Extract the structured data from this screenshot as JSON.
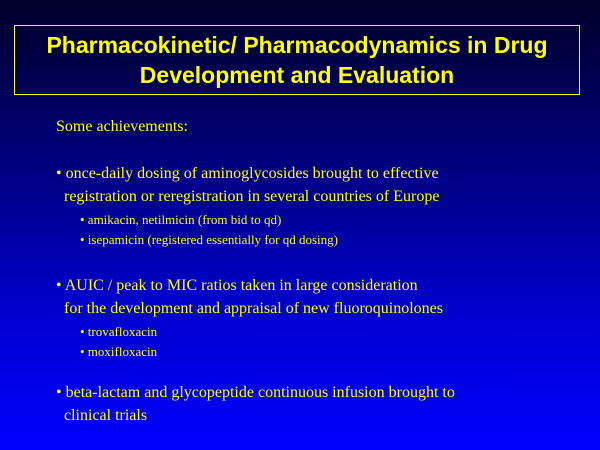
{
  "title": {
    "line1": "Pharmacokinetic/ Pharmacodynamics in Drug",
    "line2": "Development and Evaluation"
  },
  "intro": "Some achievements:",
  "bullets": [
    {
      "lines": [
        "• once-daily dosing of aminoglycosides brought to effective",
        "registration or reregistration in several countries of Europe"
      ],
      "sub": [
        "• amikacin, netilmicin (from bid to qd)",
        "• isepamicin (registered essentially for qd dosing)"
      ]
    },
    {
      "lines": [
        "• AUIC / peak to MIC ratios taken in large consideration",
        "for the development and appraisal of new  fluoroquinolones"
      ],
      "sub": [
        "• trovafloxacin",
        "• moxifloxacin"
      ]
    },
    {
      "lines": [
        "• beta-lactam and glycopeptide continuous infusion brought to",
        "clinical trials"
      ]
    }
  ],
  "colors": {
    "text": "#ffff00",
    "background_top": "#000028",
    "background_bottom": "#0000ff"
  }
}
